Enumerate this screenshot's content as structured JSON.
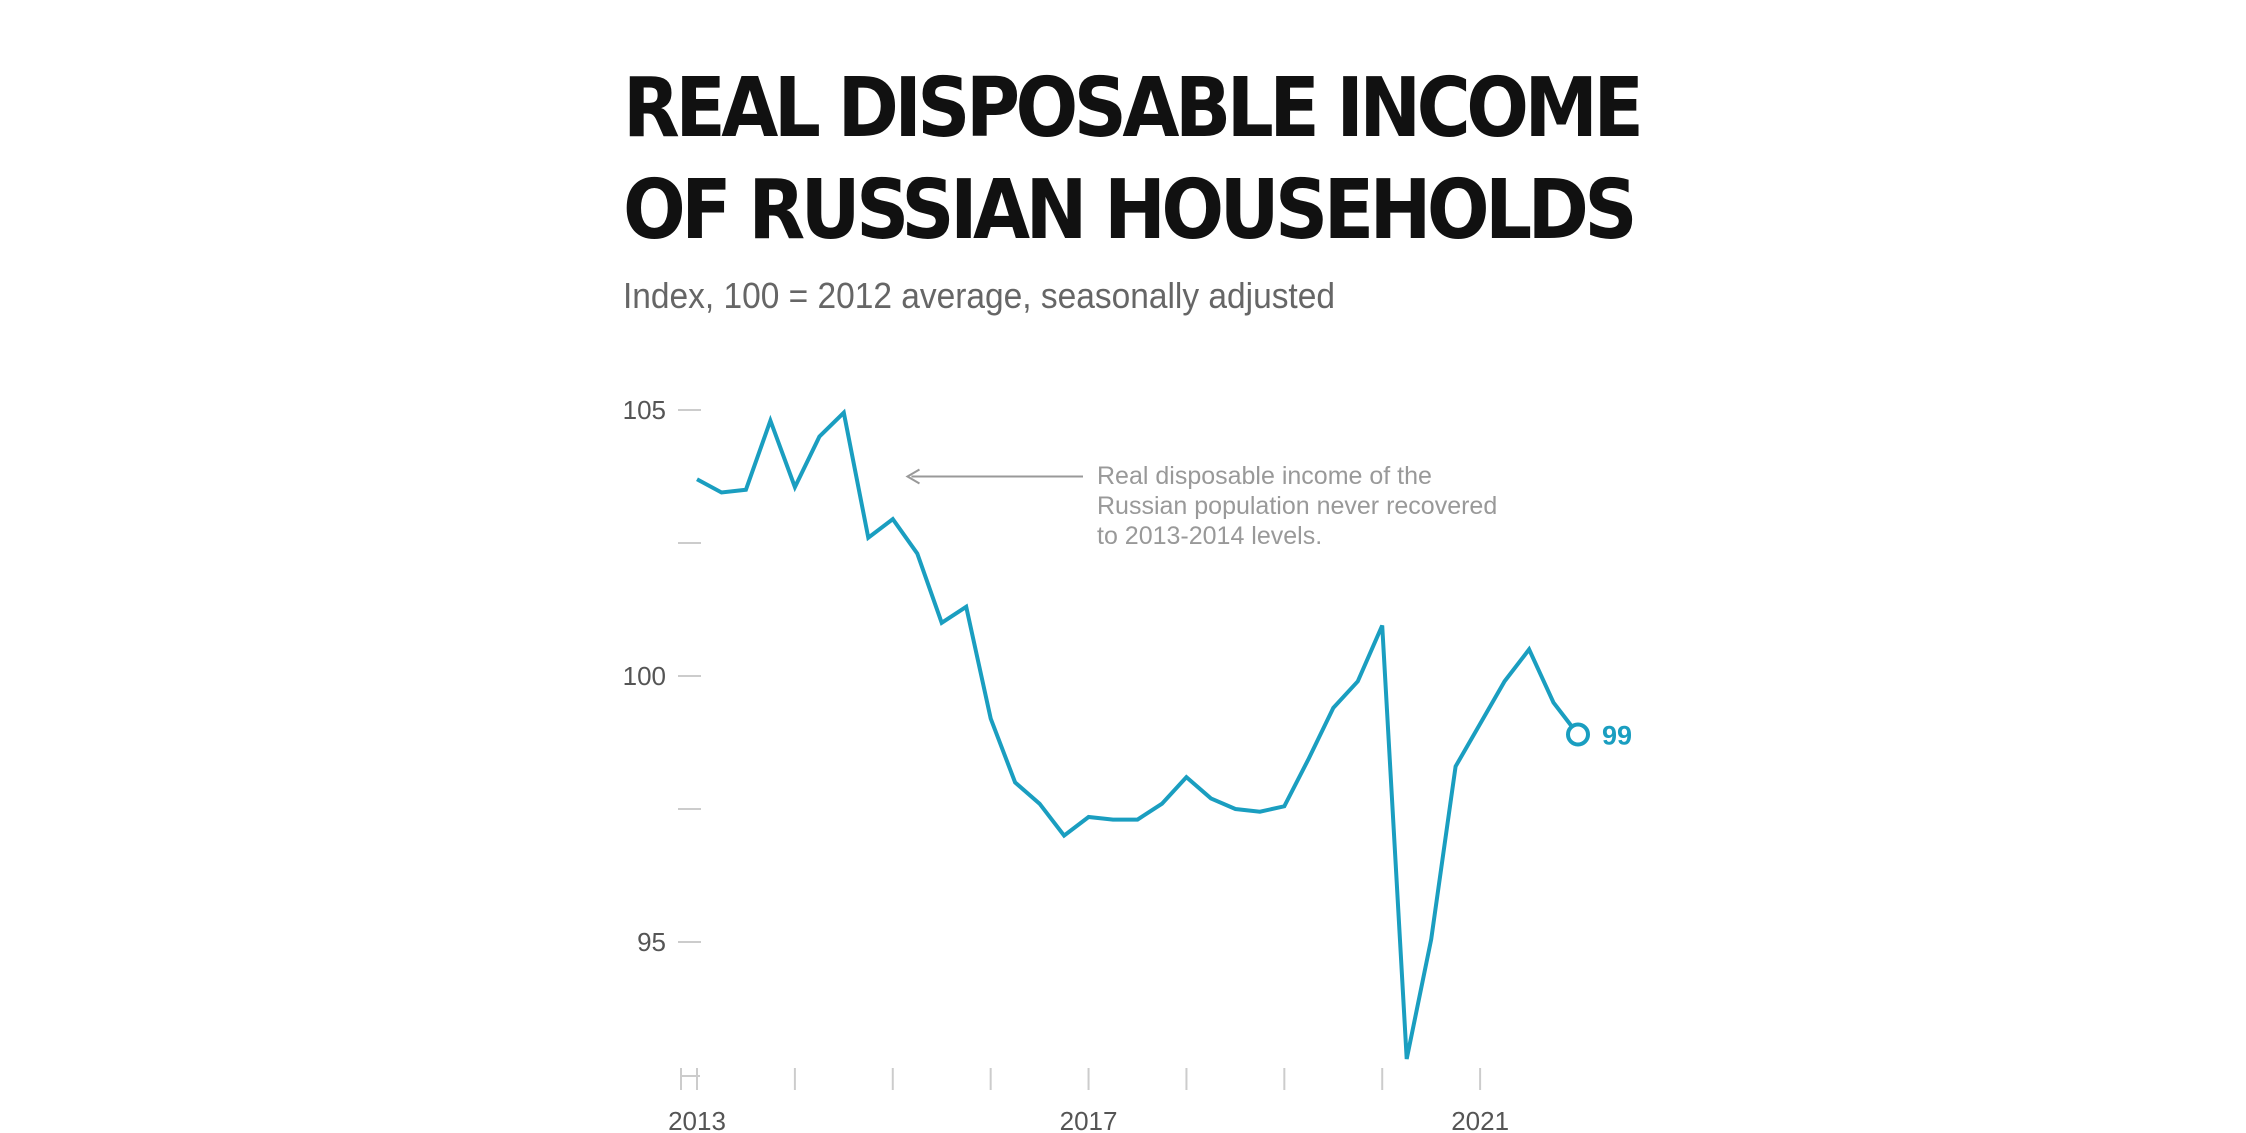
{
  "chart_data": {
    "type": "line",
    "title": "REAL DISPOSABLE INCOME OF RUSSIAN HOUSEHOLDS",
    "title_lines": [
      "REAL DISPOSABLE INCOME",
      "OF RUSSIAN HOUSEHOLDS"
    ],
    "subtitle": "Index, 100 = 2012 average, seasonally adjusted",
    "xlabel": "",
    "ylabel": "",
    "ylim": [
      92.5,
      105.5
    ],
    "y_ticks": [
      95,
      97.5,
      100,
      102.5,
      105
    ],
    "y_tick_labels": [
      "95",
      "",
      "100",
      "",
      "105"
    ],
    "x_ticks": [
      2013,
      2014,
      2015,
      2016,
      2017,
      2018,
      2019,
      2020,
      2021
    ],
    "x_tick_labels": [
      "2013",
      "",
      "",
      "",
      "2017",
      "",
      "",
      "",
      "2021"
    ],
    "grid": false,
    "line_color": "#1a9ec0",
    "series": [
      {
        "x": [
          2013.0,
          2013.25,
          2013.5,
          2013.75,
          2014.0,
          2014.25,
          2014.5,
          2014.75,
          2015.0,
          2015.25,
          2015.5,
          2015.75,
          2016.0,
          2016.25,
          2016.5,
          2016.75,
          2017.0,
          2017.25,
          2017.5,
          2017.75,
          2018.0,
          2018.25,
          2018.5,
          2018.75,
          2019.0,
          2019.25,
          2019.5,
          2019.75,
          2020.0,
          2020.25,
          2020.5,
          2020.75,
          2021.0,
          2021.25,
          2021.5,
          2021.75,
          2022.0
        ],
        "values": [
          103.7,
          103.45,
          103.5,
          104.8,
          103.55,
          104.5,
          104.95,
          102.6,
          102.95,
          102.3,
          101.0,
          101.3,
          99.2,
          98.0,
          97.6,
          97.0,
          97.35,
          97.3,
          97.3,
          97.6,
          98.1,
          97.7,
          97.5,
          97.45,
          97.55,
          98.45,
          99.4,
          99.9,
          100.95,
          92.8,
          95.05,
          98.3,
          99.1,
          99.9,
          100.5,
          99.5,
          98.9
        ]
      }
    ],
    "end_label": "99",
    "annotation": {
      "lines": [
        "Real disposable income of the",
        "Russian population never recovered",
        "to 2013-2014 levels."
      ],
      "arrow_to": {
        "x": 2015.15,
        "y": 103.75
      }
    }
  }
}
